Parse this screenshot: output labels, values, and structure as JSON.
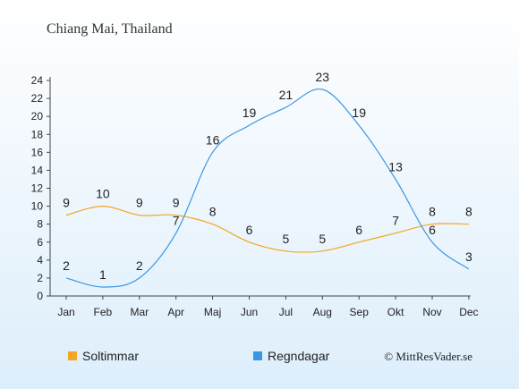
{
  "title": "Chiang Mai, Thailand",
  "copyright": "© MittResVader.se",
  "colors": {
    "sun": "#f5a623",
    "rain": "#3a97e4",
    "background_top": "#ffffff",
    "background_bottom": "#ddeefb"
  },
  "chart_data": {
    "type": "line",
    "categories": [
      "Jan",
      "Feb",
      "Mar",
      "Apr",
      "Maj",
      "Jun",
      "Jul",
      "Aug",
      "Sep",
      "Okt",
      "Nov",
      "Dec"
    ],
    "series": [
      {
        "name": "Soltimmar",
        "color": "#f5a623",
        "values": [
          9,
          10,
          9,
          9,
          8,
          6,
          5,
          5,
          6,
          7,
          8,
          8
        ]
      },
      {
        "name": "Regndagar",
        "color": "#3a97e4",
        "values": [
          2,
          1,
          2,
          7,
          16,
          19,
          21,
          23,
          19,
          13,
          6,
          3
        ]
      }
    ],
    "yticks": [
      0,
      2,
      4,
      6,
      8,
      10,
      12,
      14,
      16,
      18,
      20,
      22,
      24
    ],
    "ylim": [
      0,
      24
    ],
    "grid": false,
    "legend_position": "bottom-left"
  }
}
